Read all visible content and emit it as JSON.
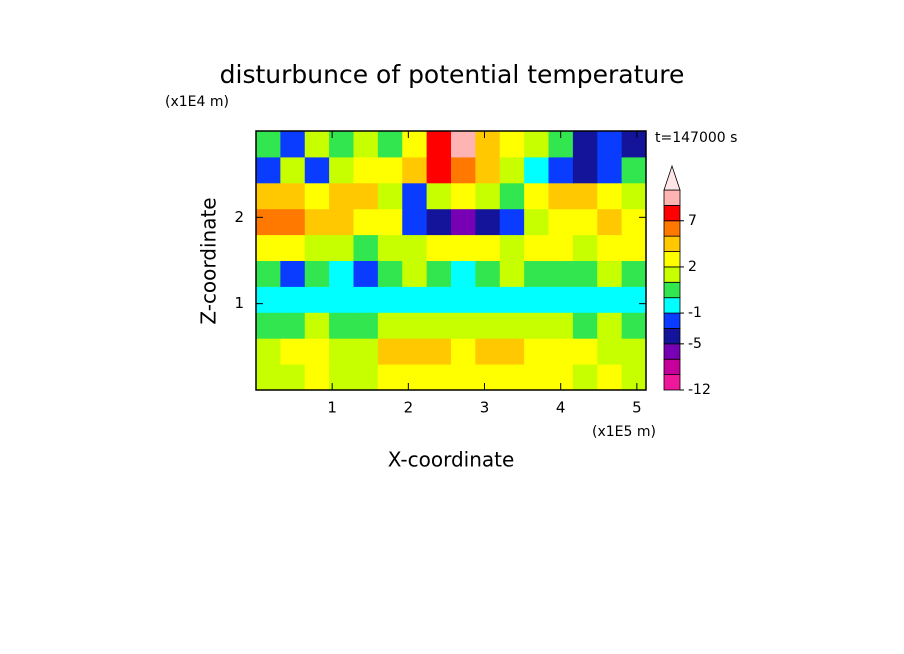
{
  "chart_data": {
    "type": "contour",
    "title": "disturbunce of potential temperature",
    "x_label": "X-coordinate",
    "y_label": "Z-coordinate",
    "x_unit": "(x1E5 m)",
    "y_unit": "(x1E4 m)",
    "annotation": "t=147000 s",
    "xlim": [
      0,
      5.12
    ],
    "ylim": [
      0,
      3
    ],
    "xticks": [
      1,
      2,
      3,
      4,
      5
    ],
    "yticks": [
      1,
      2
    ],
    "x": [
      0.16,
      0.48,
      0.8,
      1.12,
      1.44,
      1.76,
      2.08,
      2.4,
      2.72,
      3.04,
      3.36,
      3.68,
      4.0,
      4.32,
      4.64,
      4.96
    ],
    "z": [
      0.15,
      0.45,
      0.75,
      1.05,
      1.35,
      1.65,
      1.95,
      2.25,
      2.55,
      2.85
    ],
    "values": [
      [
        1.5,
        1.5,
        2.5,
        1.5,
        1,
        2.5,
        2.5,
        2.5,
        2.5,
        2.5,
        2.5,
        2.5,
        2.5,
        1.5,
        2.5,
        1.5
      ],
      [
        1.5,
        2.5,
        2.5,
        1.5,
        1.5,
        3.5,
        3.5,
        3.5,
        2.5,
        3.5,
        3.5,
        2.5,
        2.5,
        2.5,
        1.5,
        1.5
      ],
      [
        0.5,
        0.5,
        1.5,
        0.5,
        0.5,
        1.5,
        1.5,
        1.5,
        1.5,
        1.5,
        1.5,
        1.5,
        1.5,
        0.5,
        1.5,
        0.5
      ],
      [
        -0.5,
        -0.5,
        -0.5,
        -0.5,
        -0.5,
        -0.5,
        -0.5,
        -0.5,
        -0.5,
        -0.5,
        -0.5,
        -0.5,
        -0.5,
        -0.5,
        -0.5,
        -0.5
      ],
      [
        0.5,
        -2,
        0.5,
        -0.5,
        -2,
        0.5,
        1.5,
        0.5,
        -0.5,
        0.5,
        1.5,
        0.5,
        0.5,
        0.5,
        1.5,
        0.5
      ],
      [
        2.5,
        2.5,
        1.5,
        1.5,
        0.5,
        1.5,
        1.5,
        2.5,
        2.5,
        2.5,
        1.5,
        2.5,
        2.5,
        1.5,
        2.5,
        2.5
      ],
      [
        6,
        6,
        4,
        4,
        2.5,
        2.5,
        -2,
        -4,
        -6,
        -4,
        -2,
        1.5,
        2.5,
        2.5,
        4,
        2.5
      ],
      [
        4,
        4,
        2.5,
        4,
        4,
        1.5,
        -2,
        1.5,
        2.5,
        1.5,
        0.5,
        2.5,
        4,
        4,
        2.5,
        1.5
      ],
      [
        -2,
        1.5,
        -2,
        1.5,
        2.5,
        2.5,
        4,
        8,
        6,
        4,
        1.5,
        -0.5,
        -2,
        -4,
        -2,
        0.5
      ],
      [
        0.5,
        -2,
        1.5,
        0.5,
        1.5,
        0.5,
        2.5,
        8,
        10,
        4,
        2.5,
        1.5,
        0.5,
        -4,
        -2,
        -4
      ]
    ],
    "levels": [
      -12,
      -10,
      -7,
      -5,
      -3,
      -1,
      0,
      1,
      2,
      3,
      5,
      7,
      9,
      11
    ],
    "colors": [
      "#f0189a",
      "#c8009b",
      "#7800b4",
      "#14149b",
      "#0a3cff",
      "#00ffff",
      "#32e650",
      "#c8ff00",
      "#ffff00",
      "#ffc800",
      "#ff7800",
      "#ff0000",
      "#ffb4b4"
    ],
    "over_color": "#ffe6e6",
    "colorbar_ticks": [
      -12,
      -5,
      -1,
      2,
      7
    ]
  }
}
